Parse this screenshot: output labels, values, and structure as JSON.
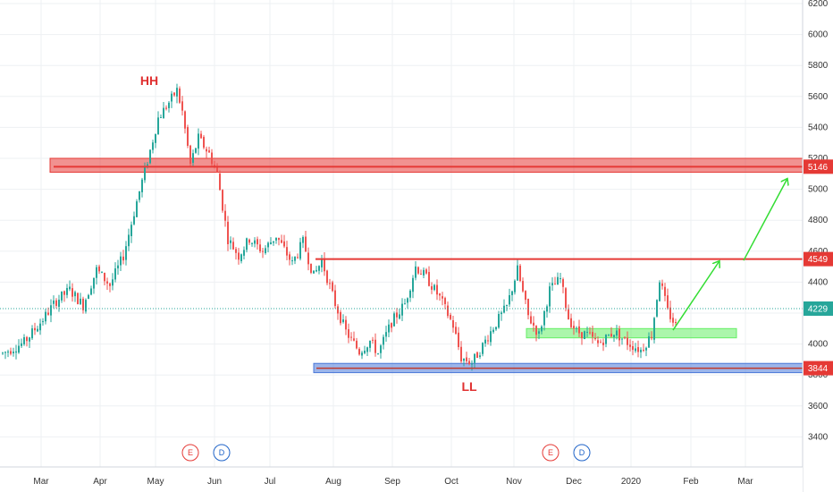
{
  "chart_data": {
    "type": "candlestick",
    "y_range": [
      3250,
      6200
    ],
    "y_ticks": [
      "3400",
      "3600",
      "3800",
      "4000",
      "4200",
      "4400",
      "4600",
      "4800",
      "5000",
      "5200",
      "5400",
      "5600",
      "5800",
      "6000",
      "6200"
    ],
    "x_ticks": [
      "Mar",
      "Apr",
      "May",
      "Jun",
      "Jul",
      "Aug",
      "Sep",
      "Oct",
      "Nov",
      "Dec",
      "2020",
      "Feb",
      "Mar"
    ],
    "price_tags": [
      {
        "label": "5146",
        "value": 5146,
        "color": "#e53935"
      },
      {
        "label": "4549",
        "value": 4549,
        "color": "#e53935"
      },
      {
        "label": "4229",
        "value": 4229,
        "color": "#26a69a"
      },
      {
        "label": "3844",
        "value": 3844,
        "color": "#e53935"
      }
    ],
    "annotations": [
      {
        "text": "HH",
        "value": 5650
      },
      {
        "text": "LL",
        "value": 3800
      }
    ],
    "zones": [
      {
        "name": "resistance-zone",
        "low": 5110,
        "high": 5200,
        "color": "#e53935"
      },
      {
        "name": "demand-zone",
        "low": 4040,
        "high": 4100,
        "color": "#66ee66"
      },
      {
        "name": "support-zone",
        "low": 3815,
        "high": 3875,
        "color": "#4a78d8"
      }
    ],
    "resistance_line": 4549,
    "current_price": 4229,
    "events": [
      {
        "text": "E",
        "color": "#e53935"
      },
      {
        "text": "D",
        "color": "#1e63c8"
      },
      {
        "text": "E",
        "color": "#e53935"
      },
      {
        "text": "D",
        "color": "#1e63c8"
      }
    ],
    "projection_targets": [
      4549,
      5070
    ],
    "anchors": [
      [
        0,
        3940
      ],
      [
        8,
        4010
      ],
      [
        15,
        4160
      ],
      [
        20,
        4280
      ],
      [
        25,
        4350
      ],
      [
        30,
        4250
      ],
      [
        35,
        4480
      ],
      [
        40,
        4380
      ],
      [
        45,
        4570
      ],
      [
        50,
        4920
      ],
      [
        55,
        5250
      ],
      [
        58,
        5460
      ],
      [
        62,
        5560
      ],
      [
        65,
        5640
      ],
      [
        67,
        5500
      ],
      [
        70,
        5160
      ],
      [
        73,
        5330
      ],
      [
        77,
        5230
      ],
      [
        80,
        5100
      ],
      [
        84,
        4680
      ],
      [
        88,
        4570
      ],
      [
        92,
        4680
      ],
      [
        97,
        4600
      ],
      [
        102,
        4700
      ],
      [
        108,
        4520
      ],
      [
        112,
        4660
      ],
      [
        116,
        4440
      ],
      [
        119,
        4540
      ],
      [
        124,
        4260
      ],
      [
        128,
        4080
      ],
      [
        133,
        3950
      ],
      [
        137,
        4020
      ],
      [
        140,
        3940
      ],
      [
        145,
        4140
      ],
      [
        150,
        4260
      ],
      [
        154,
        4500
      ],
      [
        158,
        4430
      ],
      [
        163,
        4300
      ],
      [
        168,
        4120
      ],
      [
        171,
        3910
      ],
      [
        175,
        3880
      ],
      [
        178,
        3960
      ],
      [
        183,
        4110
      ],
      [
        188,
        4240
      ],
      [
        192,
        4480
      ],
      [
        196,
        4180
      ],
      [
        200,
        4060
      ],
      [
        204,
        4350
      ],
      [
        208,
        4420
      ],
      [
        211,
        4170
      ],
      [
        214,
        4080
      ],
      [
        218,
        4060
      ],
      [
        222,
        4000
      ],
      [
        228,
        4080
      ],
      [
        233,
        4010
      ],
      [
        238,
        3960
      ],
      [
        242,
        4060
      ],
      [
        245,
        4420
      ],
      [
        248,
        4210
      ],
      [
        251,
        4120
      ]
    ]
  }
}
